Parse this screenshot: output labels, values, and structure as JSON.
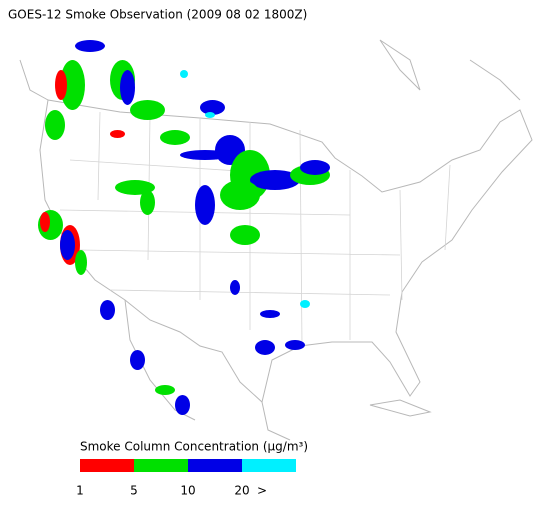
{
  "title": "GOES-12 Smoke Observation (2009 08 02  1800Z)",
  "legend": {
    "label": "Smoke Column Concentration (μg/m³)",
    "colors": [
      "#ff0000",
      "#00e000",
      "#0000e6",
      "#00f0ff"
    ],
    "ticks": [
      "1",
      "5",
      "10",
      "20",
      ">"
    ]
  }
}
